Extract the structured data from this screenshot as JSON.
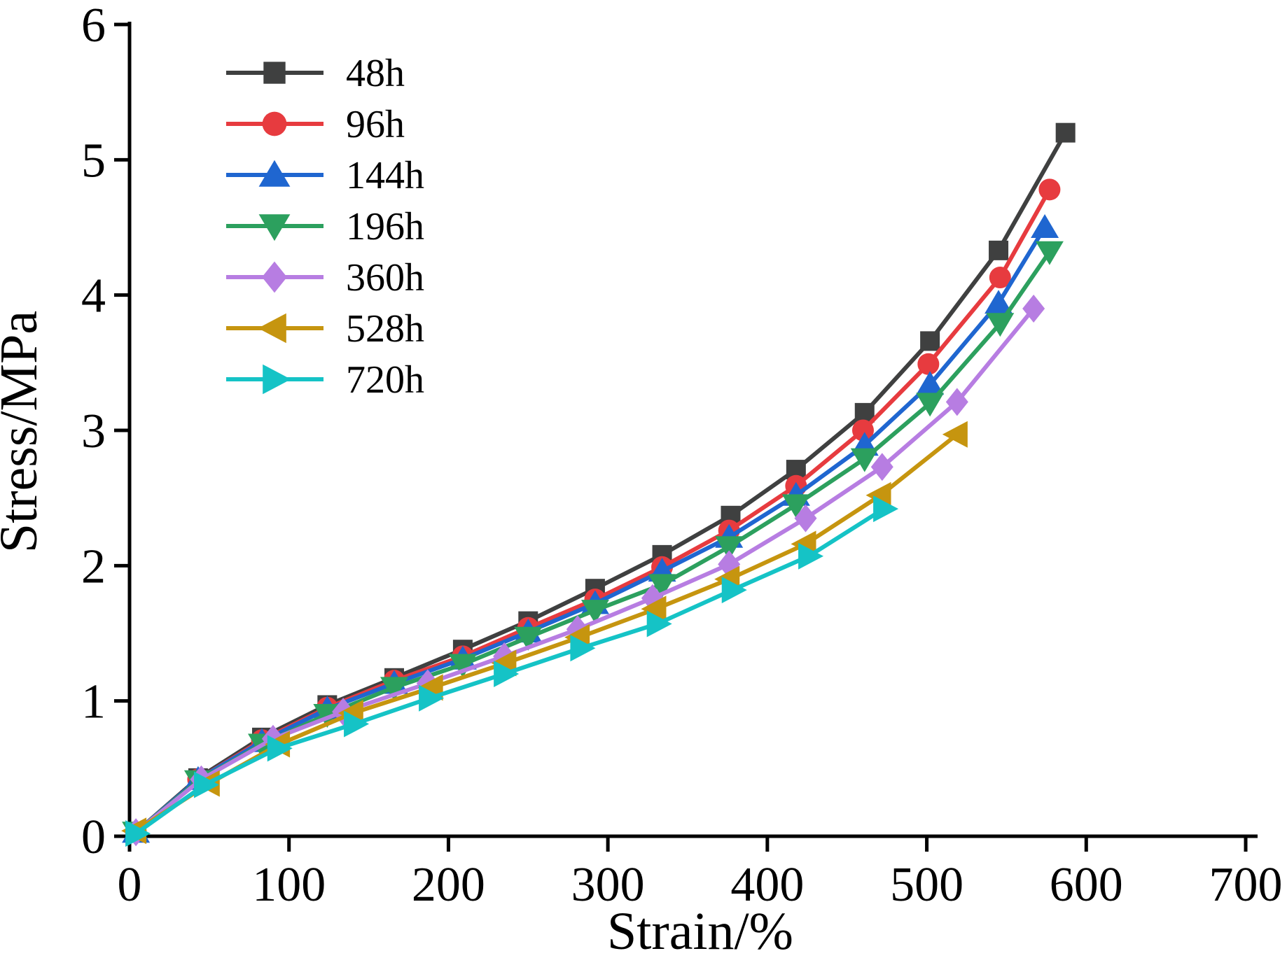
{
  "chart_data": {
    "type": "line",
    "title": "",
    "xlabel": "Strain/%",
    "ylabel": "Stress/MPa",
    "xlim": [
      0,
      700
    ],
    "ylim": [
      0,
      6
    ],
    "xticks": [
      0,
      100,
      200,
      300,
      400,
      500,
      600,
      700
    ],
    "yticks": [
      0,
      1,
      2,
      3,
      4,
      5,
      6
    ],
    "grid": false,
    "legend_position": "top-left",
    "axis_color": "#000000",
    "series": [
      {
        "name": "48h",
        "color": "#3F4040",
        "marker": "square",
        "points": [
          [
            4,
            0.03
          ],
          [
            43,
            0.43
          ],
          [
            83,
            0.73
          ],
          [
            124,
            0.97
          ],
          [
            166,
            1.17
          ],
          [
            209,
            1.38
          ],
          [
            250,
            1.59
          ],
          [
            292,
            1.83
          ],
          [
            334,
            2.08
          ],
          [
            377,
            2.37
          ],
          [
            418,
            2.71
          ],
          [
            461,
            3.13
          ],
          [
            502,
            3.66
          ],
          [
            545,
            4.33
          ],
          [
            587,
            5.2
          ]
        ]
      },
      {
        "name": "96h",
        "color": "#E73B3F",
        "marker": "circle",
        "points": [
          [
            4,
            0.03
          ],
          [
            43,
            0.42
          ],
          [
            83,
            0.71
          ],
          [
            124,
            0.95
          ],
          [
            166,
            1.15
          ],
          [
            209,
            1.33
          ],
          [
            250,
            1.54
          ],
          [
            292,
            1.75
          ],
          [
            334,
            1.99
          ],
          [
            376,
            2.26
          ],
          [
            418,
            2.59
          ],
          [
            460,
            3.0
          ],
          [
            501,
            3.49
          ],
          [
            546,
            4.13
          ],
          [
            577,
            4.78
          ]
        ]
      },
      {
        "name": "144h",
        "color": "#1F66D0",
        "marker": "triangle-up",
        "points": [
          [
            4,
            0.03
          ],
          [
            43,
            0.42
          ],
          [
            83,
            0.7
          ],
          [
            124,
            0.94
          ],
          [
            166,
            1.13
          ],
          [
            209,
            1.31
          ],
          [
            250,
            1.51
          ],
          [
            292,
            1.72
          ],
          [
            334,
            1.96
          ],
          [
            376,
            2.21
          ],
          [
            418,
            2.52
          ],
          [
            461,
            2.89
          ],
          [
            502,
            3.34
          ],
          [
            545,
            3.94
          ],
          [
            574,
            4.5
          ]
        ]
      },
      {
        "name": "196h",
        "color": "#2CA05E",
        "marker": "triangle-down",
        "points": [
          [
            4,
            0.03
          ],
          [
            43,
            0.41
          ],
          [
            83,
            0.68
          ],
          [
            124,
            0.9
          ],
          [
            166,
            1.1
          ],
          [
            209,
            1.27
          ],
          [
            250,
            1.47
          ],
          [
            292,
            1.67
          ],
          [
            334,
            1.86
          ],
          [
            376,
            2.14
          ],
          [
            418,
            2.45
          ],
          [
            461,
            2.79
          ],
          [
            502,
            3.2
          ],
          [
            546,
            3.79
          ],
          [
            577,
            4.32
          ]
        ]
      },
      {
        "name": "360h",
        "color": "#B77DE2",
        "marker": "diamond",
        "points": [
          [
            4,
            0.03
          ],
          [
            45,
            0.42
          ],
          [
            90,
            0.72
          ],
          [
            134,
            0.92
          ],
          [
            187,
            1.13
          ],
          [
            235,
            1.33
          ],
          [
            281,
            1.53
          ],
          [
            328,
            1.76
          ],
          [
            376,
            2.01
          ],
          [
            424,
            2.35
          ],
          [
            472,
            2.73
          ],
          [
            519,
            3.21
          ],
          [
            567,
            3.9
          ]
        ]
      },
      {
        "name": "528h",
        "color": "#C6950F",
        "marker": "triangle-left",
        "points": [
          [
            4,
            0.04
          ],
          [
            50,
            0.39
          ],
          [
            94,
            0.68
          ],
          [
            140,
            0.91
          ],
          [
            190,
            1.1
          ],
          [
            236,
            1.28
          ],
          [
            282,
            1.47
          ],
          [
            330,
            1.68
          ],
          [
            376,
            1.9
          ],
          [
            424,
            2.16
          ],
          [
            471,
            2.52
          ],
          [
            519,
            2.97
          ]
        ]
      },
      {
        "name": "720h",
        "color": "#15C3C6",
        "marker": "triangle-right",
        "points": [
          [
            4,
            0.02
          ],
          [
            47,
            0.38
          ],
          [
            93,
            0.65
          ],
          [
            141,
            0.83
          ],
          [
            188,
            1.02
          ],
          [
            235,
            1.2
          ],
          [
            283,
            1.39
          ],
          [
            331,
            1.57
          ],
          [
            378,
            1.82
          ],
          [
            426,
            2.07
          ],
          [
            473,
            2.42
          ]
        ]
      }
    ]
  }
}
